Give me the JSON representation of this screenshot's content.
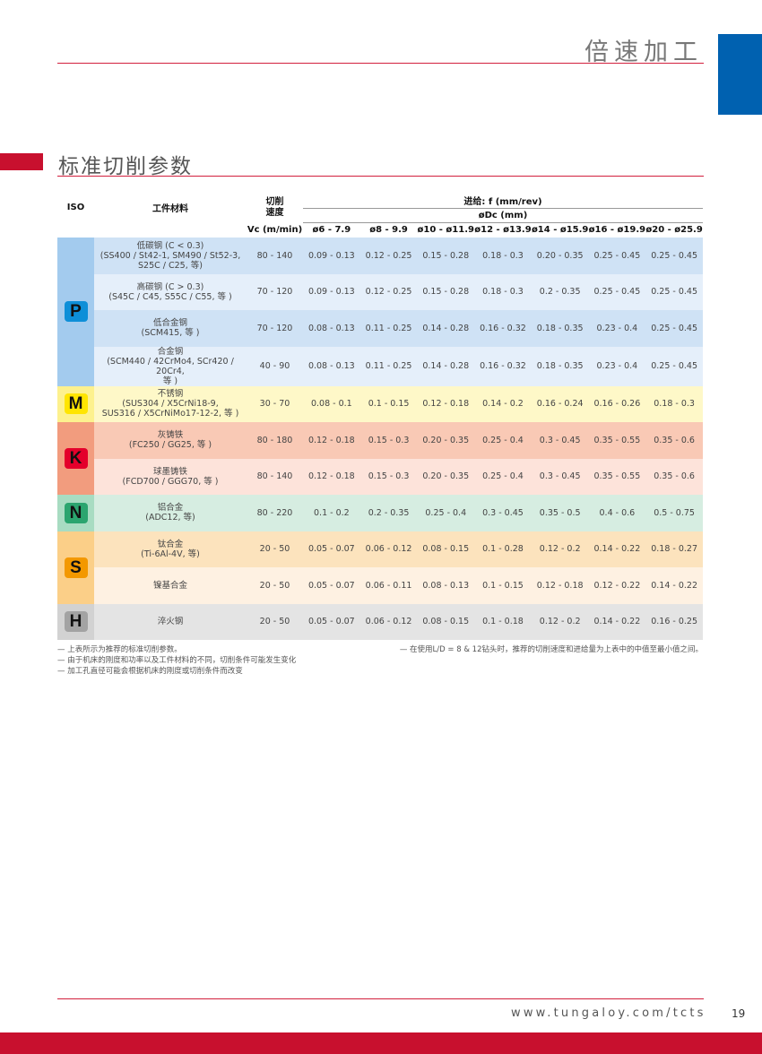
{
  "header": {
    "title": "倍速加工",
    "accent": "#0061b0",
    "line_color": "#d2203d"
  },
  "section": {
    "title": "标准切削参数"
  },
  "table": {
    "col_iso": "ISO",
    "col_material": "工件材料",
    "col_speed": "切削\n速度",
    "col_vc": "Vc (m/min)",
    "feed_label": "进给: f (mm/rev)",
    "dc_label": "øDc (mm)",
    "diameters": [
      "ø6 - 7.9",
      "ø8 - 9.9",
      "ø10 - ø11.9",
      "ø12 - ø13.9",
      "ø14 - ø15.9",
      "ø16 - ø19.9",
      "ø20 - ø25.9"
    ],
    "groups": [
      {
        "iso": "P",
        "badge_color": "#0e8fd8",
        "group_color": "#a3cbee",
        "row_colors": [
          "#cfe2f5",
          "#e5effa"
        ],
        "rows": [
          {
            "material": "低碳钢 (C < 0.3)\n(SS400 / St42-1, SM490 / St52-3,\nS25C / C25, 等)",
            "vc": "80 - 140",
            "f": [
              "0.09 - 0.13",
              "0.12 - 0.25",
              "0.15 - 0.28",
              "0.18 - 0.3",
              "0.20 - 0.35",
              "0.25 - 0.45",
              "0.25 - 0.45"
            ]
          },
          {
            "material": "高碳钢 (C > 0.3)\n(S45C / C45, S55C / C55, 等 )",
            "vc": "70 - 120",
            "f": [
              "0.09 - 0.13",
              "0.12 - 0.25",
              "0.15 - 0.28",
              "0.18 - 0.3",
              "0.2 - 0.35",
              "0.25 - 0.45",
              "0.25 - 0.45"
            ]
          },
          {
            "material": "低合金钢\n(SCM415, 等 )",
            "vc": "70 - 120",
            "f": [
              "0.08 - 0.13",
              "0.11 - 0.25",
              "0.14 - 0.28",
              "0.16 - 0.32",
              "0.18 - 0.35",
              "0.23 - 0.4",
              "0.25 - 0.45"
            ]
          },
          {
            "material": "合金钢\n(SCM440 / 42CrMo4, SCr420 / 20Cr4,\n等 )",
            "vc": "40 - 90",
            "f": [
              "0.08 - 0.13",
              "0.11 - 0.25",
              "0.14 - 0.28",
              "0.16 - 0.32",
              "0.18 - 0.35",
              "0.23 - 0.4",
              "0.25 - 0.45"
            ]
          }
        ]
      },
      {
        "iso": "M",
        "badge_color": "#ffe500",
        "group_color": "#fdf18e",
        "row_colors": [
          "#fef8c8"
        ],
        "rows": [
          {
            "material": "不锈钢\n(SUS304 / X5CrNi18-9,\nSUS316 / X5CrNiMo17-12-2, 等 )",
            "vc": "30 - 70",
            "f": [
              "0.08 - 0.1",
              "0.1 - 0.15",
              "0.12 - 0.18",
              "0.14 - 0.2",
              "0.16 - 0.24",
              "0.16 - 0.26",
              "0.18 - 0.3"
            ]
          }
        ]
      },
      {
        "iso": "K",
        "badge_color": "#e4002b",
        "group_color": "#f29c7e",
        "row_colors": [
          "#f9c9b5",
          "#fde3da"
        ],
        "rows": [
          {
            "material": "灰铸铁\n(FC250 / GG25, 等 )",
            "vc": "80 - 180",
            "f": [
              "0.12 - 0.18",
              "0.15 - 0.3",
              "0.20 - 0.35",
              "0.25 - 0.4",
              "0.3 - 0.45",
              "0.35 - 0.55",
              "0.35 - 0.6"
            ]
          },
          {
            "material": "球墨铸铁\n(FCD700 / GGG70, 等 )",
            "vc": "80 - 140",
            "f": [
              "0.12 - 0.18",
              "0.15 - 0.3",
              "0.20 - 0.35",
              "0.25 - 0.4",
              "0.3 - 0.45",
              "0.35 - 0.55",
              "0.35 - 0.6"
            ]
          }
        ]
      },
      {
        "iso": "N",
        "badge_color": "#2ba56f",
        "group_color": "#a8dcc2",
        "row_colors": [
          "#d6ede1"
        ],
        "rows": [
          {
            "material": "铝合金\n(ADC12, 等)",
            "vc": "80 - 220",
            "f": [
              "0.1 - 0.2",
              "0.2 - 0.35",
              "0.25 - 0.4",
              "0.3 - 0.45",
              "0.35 - 0.5",
              "0.4 - 0.6",
              "0.5 - 0.75"
            ]
          }
        ]
      },
      {
        "iso": "S",
        "badge_color": "#f39800",
        "group_color": "#fbcf88",
        "row_colors": [
          "#fce3bd",
          "#fef1e2"
        ],
        "rows": [
          {
            "material": "钛合金\n(Ti-6Al-4V, 等)",
            "vc": "20 - 50",
            "f": [
              "0.05 - 0.07",
              "0.06 - 0.12",
              "0.08 - 0.15",
              "0.1 - 0.28",
              "0.12 - 0.2",
              "0.14 - 0.22",
              "0.18 - 0.27"
            ]
          },
          {
            "material": "镍基合金",
            "vc": "20 - 50",
            "f": [
              "0.05 - 0.07",
              "0.06 - 0.11",
              "0.08 - 0.13",
              "0.1 - 0.15",
              "0.12 - 0.18",
              "0.12 - 0.22",
              "0.14 - 0.22"
            ]
          }
        ]
      },
      {
        "iso": "H",
        "badge_color": "#a3a3a3",
        "group_color": "#d2d2d2",
        "row_colors": [
          "#e4e4e4"
        ],
        "rows": [
          {
            "material": "淬火钢",
            "vc": "20 - 50",
            "f": [
              "0.05 - 0.07",
              "0.06 - 0.12",
              "0.08 - 0.15",
              "0.1 - 0.18",
              "0.12 - 0.2",
              "0.14 - 0.22",
              "0.16 - 0.25"
            ]
          }
        ]
      }
    ]
  },
  "notes_left": [
    "— 上表所示为推荐的标准切削参数。",
    "— 由于机床的刚度和功率以及工件材料的不同，切削条件可能发生变化",
    "— 加工孔直径可能会根据机床的刚度或切削条件而改变"
  ],
  "notes_right": [
    "— 在使用L/D = 8 & 12钻头时，推荐的切削速度和进给量为上表中的中值至最小值之间。"
  ],
  "footer": {
    "url": "www.tungaloy.com/tcts",
    "page": "19"
  }
}
